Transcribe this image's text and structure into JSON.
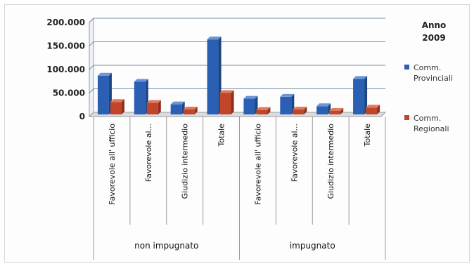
{
  "chart_data": {
    "type": "bar",
    "legend_title_lines": [
      "Anno",
      "2009"
    ],
    "legend_position": "right",
    "categories": [
      "Favorevole all' ufficio",
      "Favorevole al...",
      "Giudizio intermedio",
      "Totale",
      "Favorevole all' ufficio",
      "Favorevole al...",
      "Giudizio intermedio",
      "Totale"
    ],
    "groups": [
      {
        "label": "non impugnato",
        "count": 4
      },
      {
        "label": "impugnato",
        "count": 4
      }
    ],
    "series": [
      {
        "name": "Comm. Provinciali",
        "legend_lines": [
          "Comm.",
          "Provinciali"
        ],
        "color": "#2a5fb4",
        "values": [
          78000,
          65000,
          17000,
          155000,
          29000,
          33000,
          13000,
          71000
        ]
      },
      {
        "name": "Comm. Regionali",
        "legend_lines": [
          "Comm.",
          "Regionali"
        ],
        "color": "#c0452a",
        "values": [
          22000,
          20000,
          6000,
          41000,
          5000,
          6000,
          3000,
          10000
        ]
      }
    ],
    "yticks": [
      {
        "value": 0,
        "label": "0"
      },
      {
        "value": 50000,
        "label": "50.000"
      },
      {
        "value": 100000,
        "label": "100.000"
      },
      {
        "value": 150000,
        "label": "150.000"
      },
      {
        "value": 200000,
        "label": "200.000"
      }
    ],
    "ylim": [
      0,
      200000
    ],
    "grid": true
  }
}
